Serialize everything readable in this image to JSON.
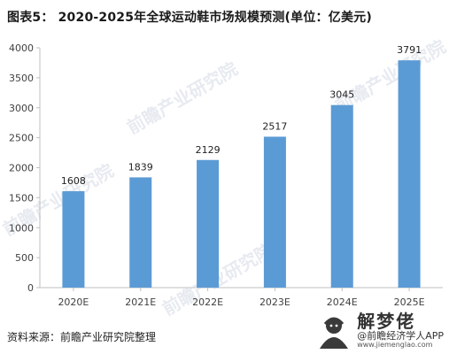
{
  "header": {
    "title": "图表5： 2020-2025年全球运动鞋市场规模预测(单位：亿美元)"
  },
  "footer": {
    "source": "资料来源：前瞻产业研究院整理"
  },
  "watermark": {
    "text": "前瞻产业研究院"
  },
  "logo": {
    "title": "解梦佬",
    "subtitle": "@前瞻经济学人APP",
    "url": "www.jiemenglao.com"
  },
  "colors": {
    "bar": "#5b9bd5",
    "axis": "#bfbfbf",
    "text": "#404040"
  },
  "chart_data": {
    "type": "bar",
    "title": "图表5： 2020-2025年全球运动鞋市场规模预测(单位：亿美元)",
    "categories": [
      "2020E",
      "2021E",
      "2022E",
      "2023E",
      "2024E",
      "2025E"
    ],
    "values": [
      1608,
      1839,
      2129,
      2517,
      3045,
      3791
    ],
    "ylim": [
      0,
      4000
    ],
    "yticks": [
      0,
      500,
      1000,
      1500,
      2000,
      2500,
      3000,
      3500,
      4000
    ],
    "grid": false,
    "data_labels": true,
    "xlabel": "",
    "ylabel": ""
  }
}
